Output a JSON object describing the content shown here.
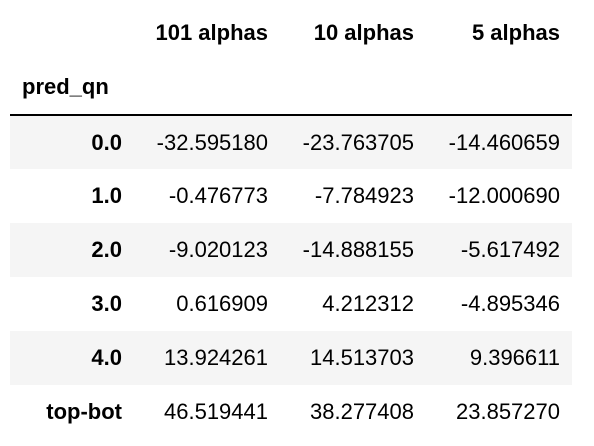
{
  "table": {
    "index_name": "pred_qn",
    "columns": [
      "101 alphas",
      "10 alphas",
      "5 alphas"
    ],
    "rows": [
      {
        "index": "0.0",
        "values": [
          "-32.595180",
          "-23.763705",
          "-14.460659"
        ]
      },
      {
        "index": "1.0",
        "values": [
          "-0.476773",
          "-7.784923",
          "-12.000690"
        ]
      },
      {
        "index": "2.0",
        "values": [
          "-9.020123",
          "-14.888155",
          "-5.617492"
        ]
      },
      {
        "index": "3.0",
        "values": [
          "0.616909",
          "4.212312",
          "-4.895346"
        ]
      },
      {
        "index": "4.0",
        "values": [
          "13.924261",
          "14.513703",
          "9.396611"
        ]
      },
      {
        "index": "top-bot",
        "values": [
          "46.519441",
          "38.277408",
          "23.857270"
        ]
      }
    ]
  }
}
